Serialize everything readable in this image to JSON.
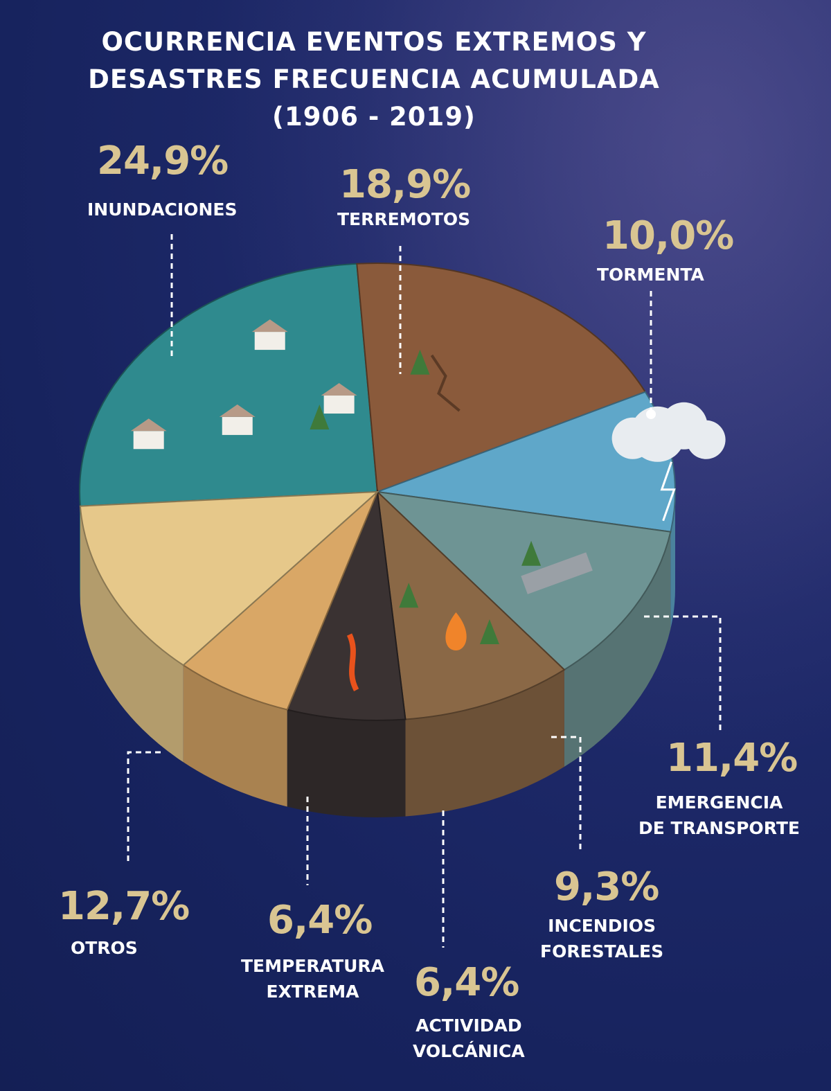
{
  "title": {
    "line1": "OCURRENCIA EVENTOS EXTREMOS Y",
    "line2": "DESASTRES FRECUENCIA ACUMULADA",
    "line3": "(1906 - 2019)"
  },
  "colors": {
    "background": "#1c2866",
    "value_text": "#d9c592",
    "label_text": "#ffffff",
    "leader_line": "#ffffff"
  },
  "chart_data": {
    "type": "pie",
    "title": "OCURRENCIA EVENTOS EXTREMOS Y DESASTRES FRECUENCIA ACUMULADA (1906 - 2019)",
    "unit": "%",
    "slices": [
      {
        "label": "INUNDACIONES",
        "value": 24.9,
        "display": "24,9%",
        "color": "#2f8a8e"
      },
      {
        "label": "TERREMOTOS",
        "value": 18.9,
        "display": "18,9%",
        "color": "#8a5a3b"
      },
      {
        "label": "TORMENTA",
        "value": 10.0,
        "display": "10,0%",
        "color": "#5fa7c9"
      },
      {
        "label": "EMERGENCIA DE TRANSPORTE",
        "value": 11.4,
        "display": "11,4%",
        "color": "#6e9494"
      },
      {
        "label": "INCENDIOS FORESTALES",
        "value": 9.3,
        "display": "9,3%",
        "color": "#8a6846"
      },
      {
        "label": "ACTIVIDAD VOLCÁNICA",
        "value": 6.4,
        "display": "6,4%",
        "color": "#3a3232"
      },
      {
        "label": "TEMPERATURA EXTREMA",
        "value": 6.4,
        "display": "6,4%",
        "color": "#d9a766"
      },
      {
        "label": "OTROS",
        "value": 12.7,
        "display": "12,7%",
        "color": "#e6c88a"
      }
    ],
    "labels": {
      "inundaciones": [
        "INUNDACIONES"
      ],
      "terremotos": [
        "TERREMOTOS"
      ],
      "tormenta": [
        "TORMENTA"
      ],
      "transporte": [
        "EMERGENCIA",
        "DE TRANSPORTE"
      ],
      "incendios": [
        "INCENDIOS",
        "FORESTALES"
      ],
      "volcanica": [
        "ACTIVIDAD",
        "VOLCÁNICA"
      ],
      "temperatura": [
        "TEMPERATURA",
        "EXTREMA"
      ],
      "otros": [
        "OTROS"
      ]
    }
  }
}
